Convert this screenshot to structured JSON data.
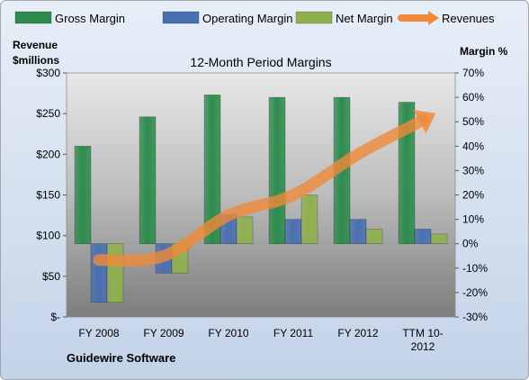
{
  "chart_data": {
    "type": "bar",
    "title": "12-Month Period Margins",
    "footer": "Guidewire Software",
    "left_axis_title": [
      "Revenue",
      "$millions"
    ],
    "right_axis_title": "Margin %",
    "categories": [
      "FY 2008",
      "FY 2009",
      "FY 2010",
      "FY 2011",
      "FY 2012",
      "TTM 10-2012"
    ],
    "category_labels": [
      [
        "FY 2008"
      ],
      [
        "FY 2009"
      ],
      [
        "FY 2010"
      ],
      [
        "FY 2011"
      ],
      [
        "FY 2012"
      ],
      [
        "TTM 10-",
        "2012"
      ]
    ],
    "left_axis": {
      "min": 0,
      "max": 300,
      "step": 50,
      "tick_labels": [
        "$-",
        "$50",
        "$100",
        "$150",
        "$200",
        "$250",
        "$300"
      ]
    },
    "right_axis": {
      "min": -30,
      "max": 70,
      "step": 10,
      "tick_labels": [
        "-30%",
        "-20%",
        "-10%",
        "0%",
        "10%",
        "20%",
        "30%",
        "40%",
        "50%",
        "60%",
        "70%"
      ]
    },
    "legend_position": "top",
    "grid": "none",
    "series": [
      {
        "name": "Gross Margin",
        "axis": "right",
        "kind": "bar",
        "color": "#2e8b4e",
        "values": [
          40,
          52,
          61,
          60,
          60,
          58
        ]
      },
      {
        "name": "Operating Margin",
        "axis": "right",
        "kind": "bar",
        "color": "#4a6fb0",
        "values": [
          -24,
          -12,
          12,
          10,
          10,
          6
        ]
      },
      {
        "name": "Net Margin",
        "axis": "right",
        "kind": "bar",
        "color": "#90b050",
        "values": [
          -24,
          -12,
          11,
          20,
          6,
          4
        ]
      },
      {
        "name": "Revenues",
        "axis": "left",
        "kind": "line",
        "color": "#f08a3a",
        "values": [
          70,
          75,
          125,
          150,
          200,
          242
        ]
      }
    ]
  }
}
